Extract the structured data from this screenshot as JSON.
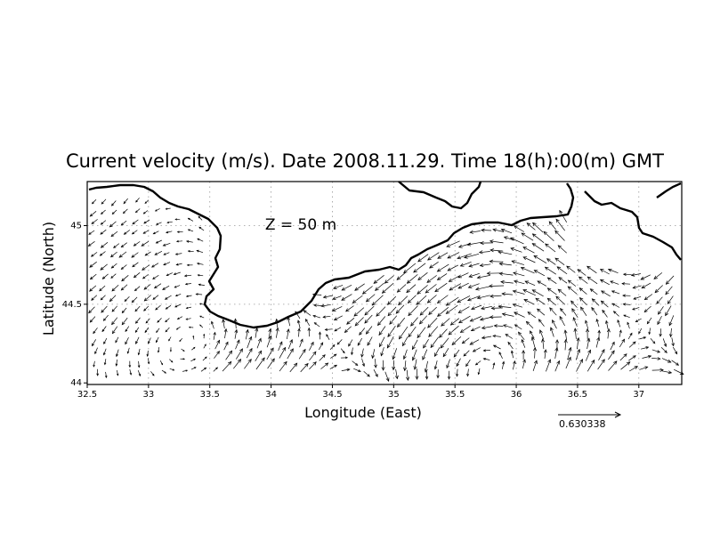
{
  "title": "Current velocity (m/s). Date 2008.11.29. Time 18(h):00(m) GMT",
  "xlabel": "Longitude (East)",
  "ylabel": "Latitude (North)",
  "depth_label": "Z = 50 m",
  "reference_vector": {
    "label": "0.630338",
    "value": 0.630338,
    "units": "m/s"
  },
  "map": {
    "lon_range": [
      32.5,
      37.35
    ],
    "lat_range": [
      43.99,
      45.28
    ],
    "grid": true,
    "x_ticks": [
      "32.5",
      "33",
      "33.5",
      "34",
      "34.5",
      "35",
      "35.5",
      "36",
      "36.5",
      "37"
    ],
    "y_ticks": [
      "45",
      "44.5",
      "44"
    ],
    "region": "Black Sea coast of Crimea and Kerch Strait area"
  },
  "colors": {
    "axes": "#000000",
    "grid": "#999999",
    "coast": "#000000",
    "vectors": "#000000"
  }
}
